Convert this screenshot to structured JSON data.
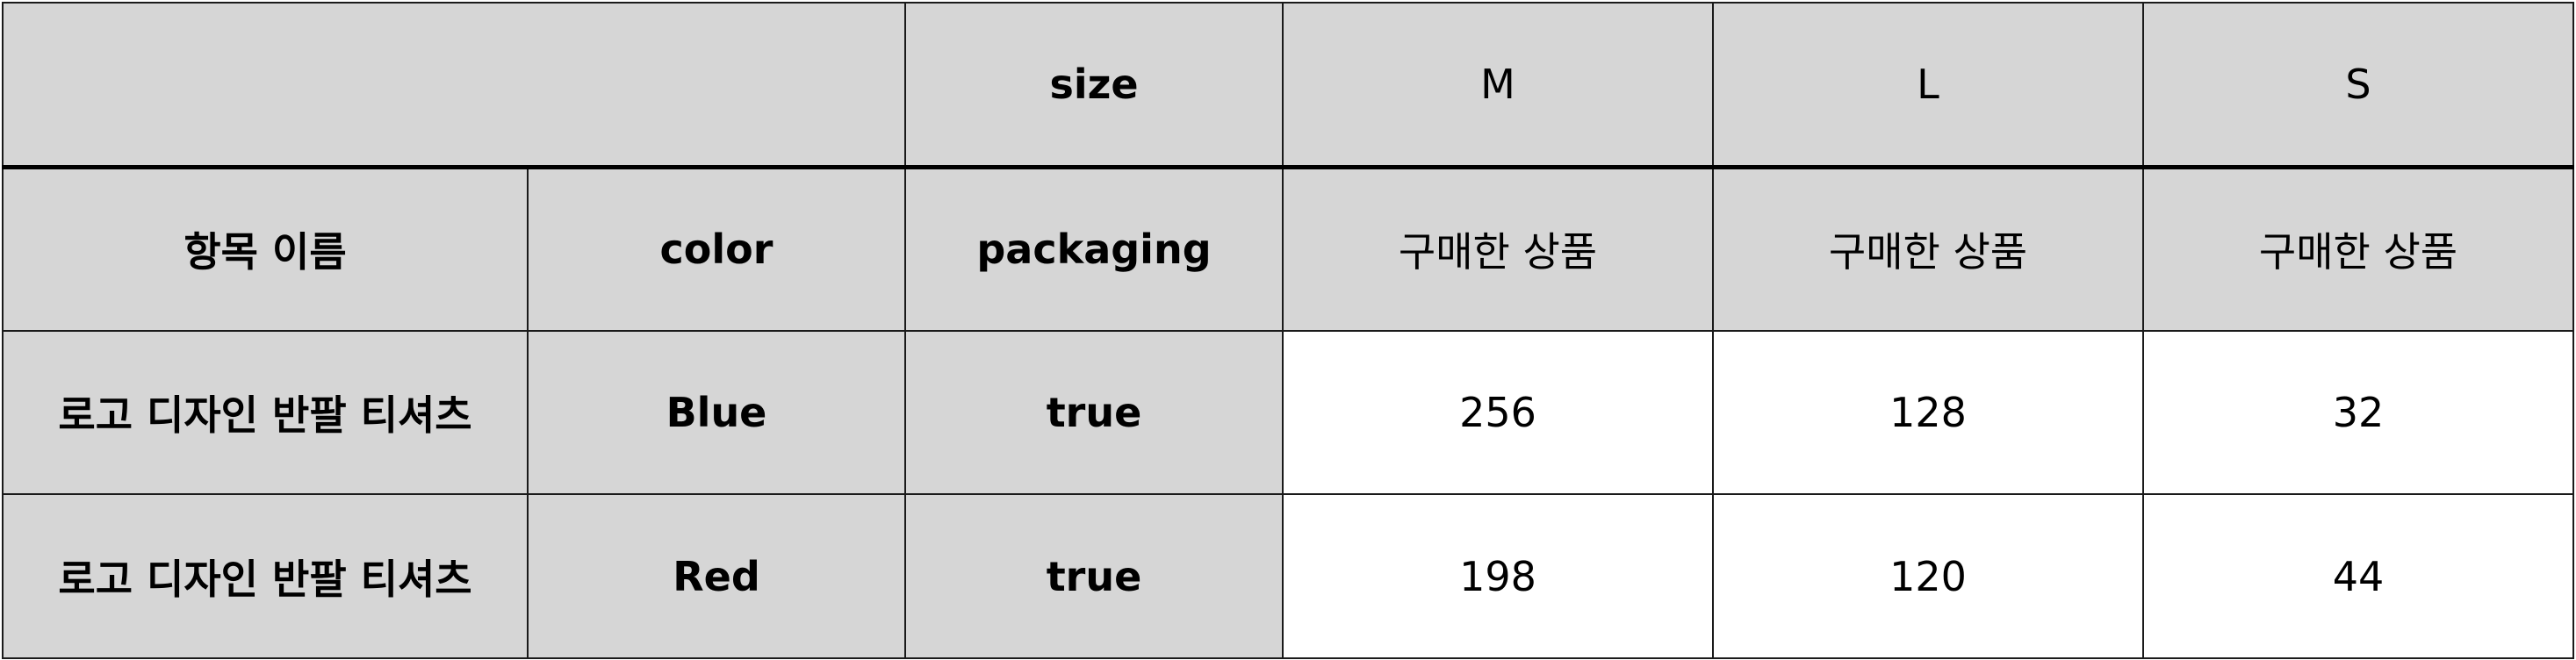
{
  "table": {
    "top_row": {
      "dimension_label": "size",
      "size_columns": [
        "M",
        "L",
        "S"
      ]
    },
    "header_row": {
      "item_name": "항목 이름",
      "color": "color",
      "packaging": "packaging",
      "measure_labels": [
        "구매한 상품",
        "구매한 상품",
        "구매한 상품"
      ]
    },
    "rows": [
      {
        "item_name": "로고 디자인 반팔 티셔츠",
        "color": "Blue",
        "packaging": "true",
        "values": [
          "256",
          "128",
          "32"
        ]
      },
      {
        "item_name": "로고 디자인 반팔 티셔츠",
        "color": "Red",
        "packaging": "true",
        "values": [
          "198",
          "120",
          "44"
        ]
      }
    ]
  }
}
